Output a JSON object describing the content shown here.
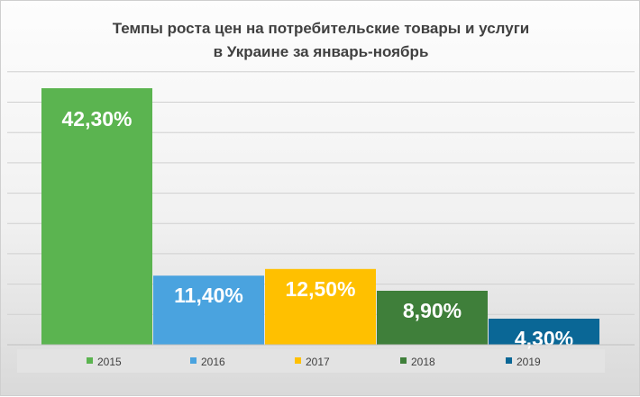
{
  "chart_data": {
    "type": "bar",
    "title_lines": [
      "Темпы роста цен на потребительские товары и услуги",
      "в Украине за январь-ноябрь"
    ],
    "categories": [
      "2015",
      "2016",
      "2017",
      "2018",
      "2019"
    ],
    "values": [
      42.3,
      11.4,
      12.5,
      8.9,
      4.3
    ],
    "labels": [
      "42,30%",
      "11,40%",
      "12,50%",
      "8,90%",
      "4,30%"
    ],
    "colors": [
      "#5bb450",
      "#4aa3df",
      "#ffc000",
      "#3f7f3a",
      "#0a6796"
    ],
    "ylim": [
      0,
      45
    ],
    "grid": true,
    "legend": "bottom"
  }
}
